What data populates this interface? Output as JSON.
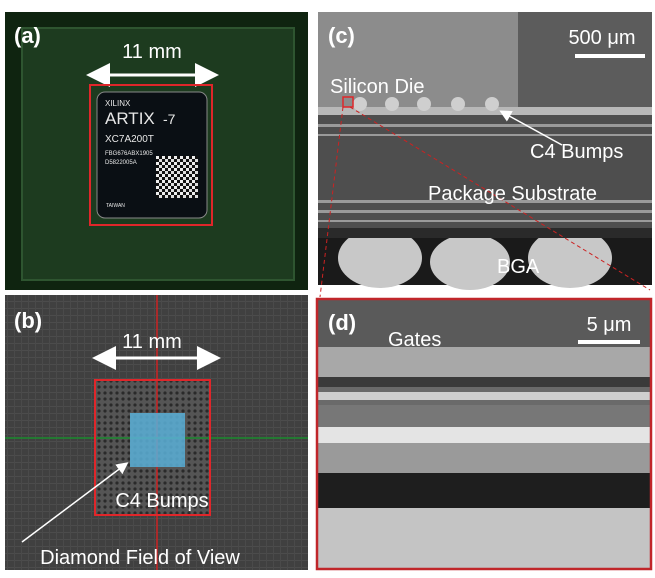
{
  "panels": [
    {
      "label": "(a)",
      "scale": "11 mm",
      "chip": {
        "brand": "XILINX",
        "family": "ARTIX",
        "series": "-7",
        "part": "XC7A200T",
        "lot": "FBG676ABX1905",
        "code": "D5822005A",
        "origin": "TAIWAN"
      }
    },
    {
      "label": "(b)",
      "scale": "11 mm",
      "annotations": [
        "C4 Bumps",
        "Diamond Field of View"
      ]
    },
    {
      "label": "(c)",
      "scale": "500 μm",
      "annotations": [
        "Silicon Die",
        "C4 Bumps",
        "Package Substrate",
        "BGA"
      ]
    },
    {
      "label": "(d)",
      "scale": "5 μm",
      "annotations": [
        "Gates"
      ]
    }
  ]
}
